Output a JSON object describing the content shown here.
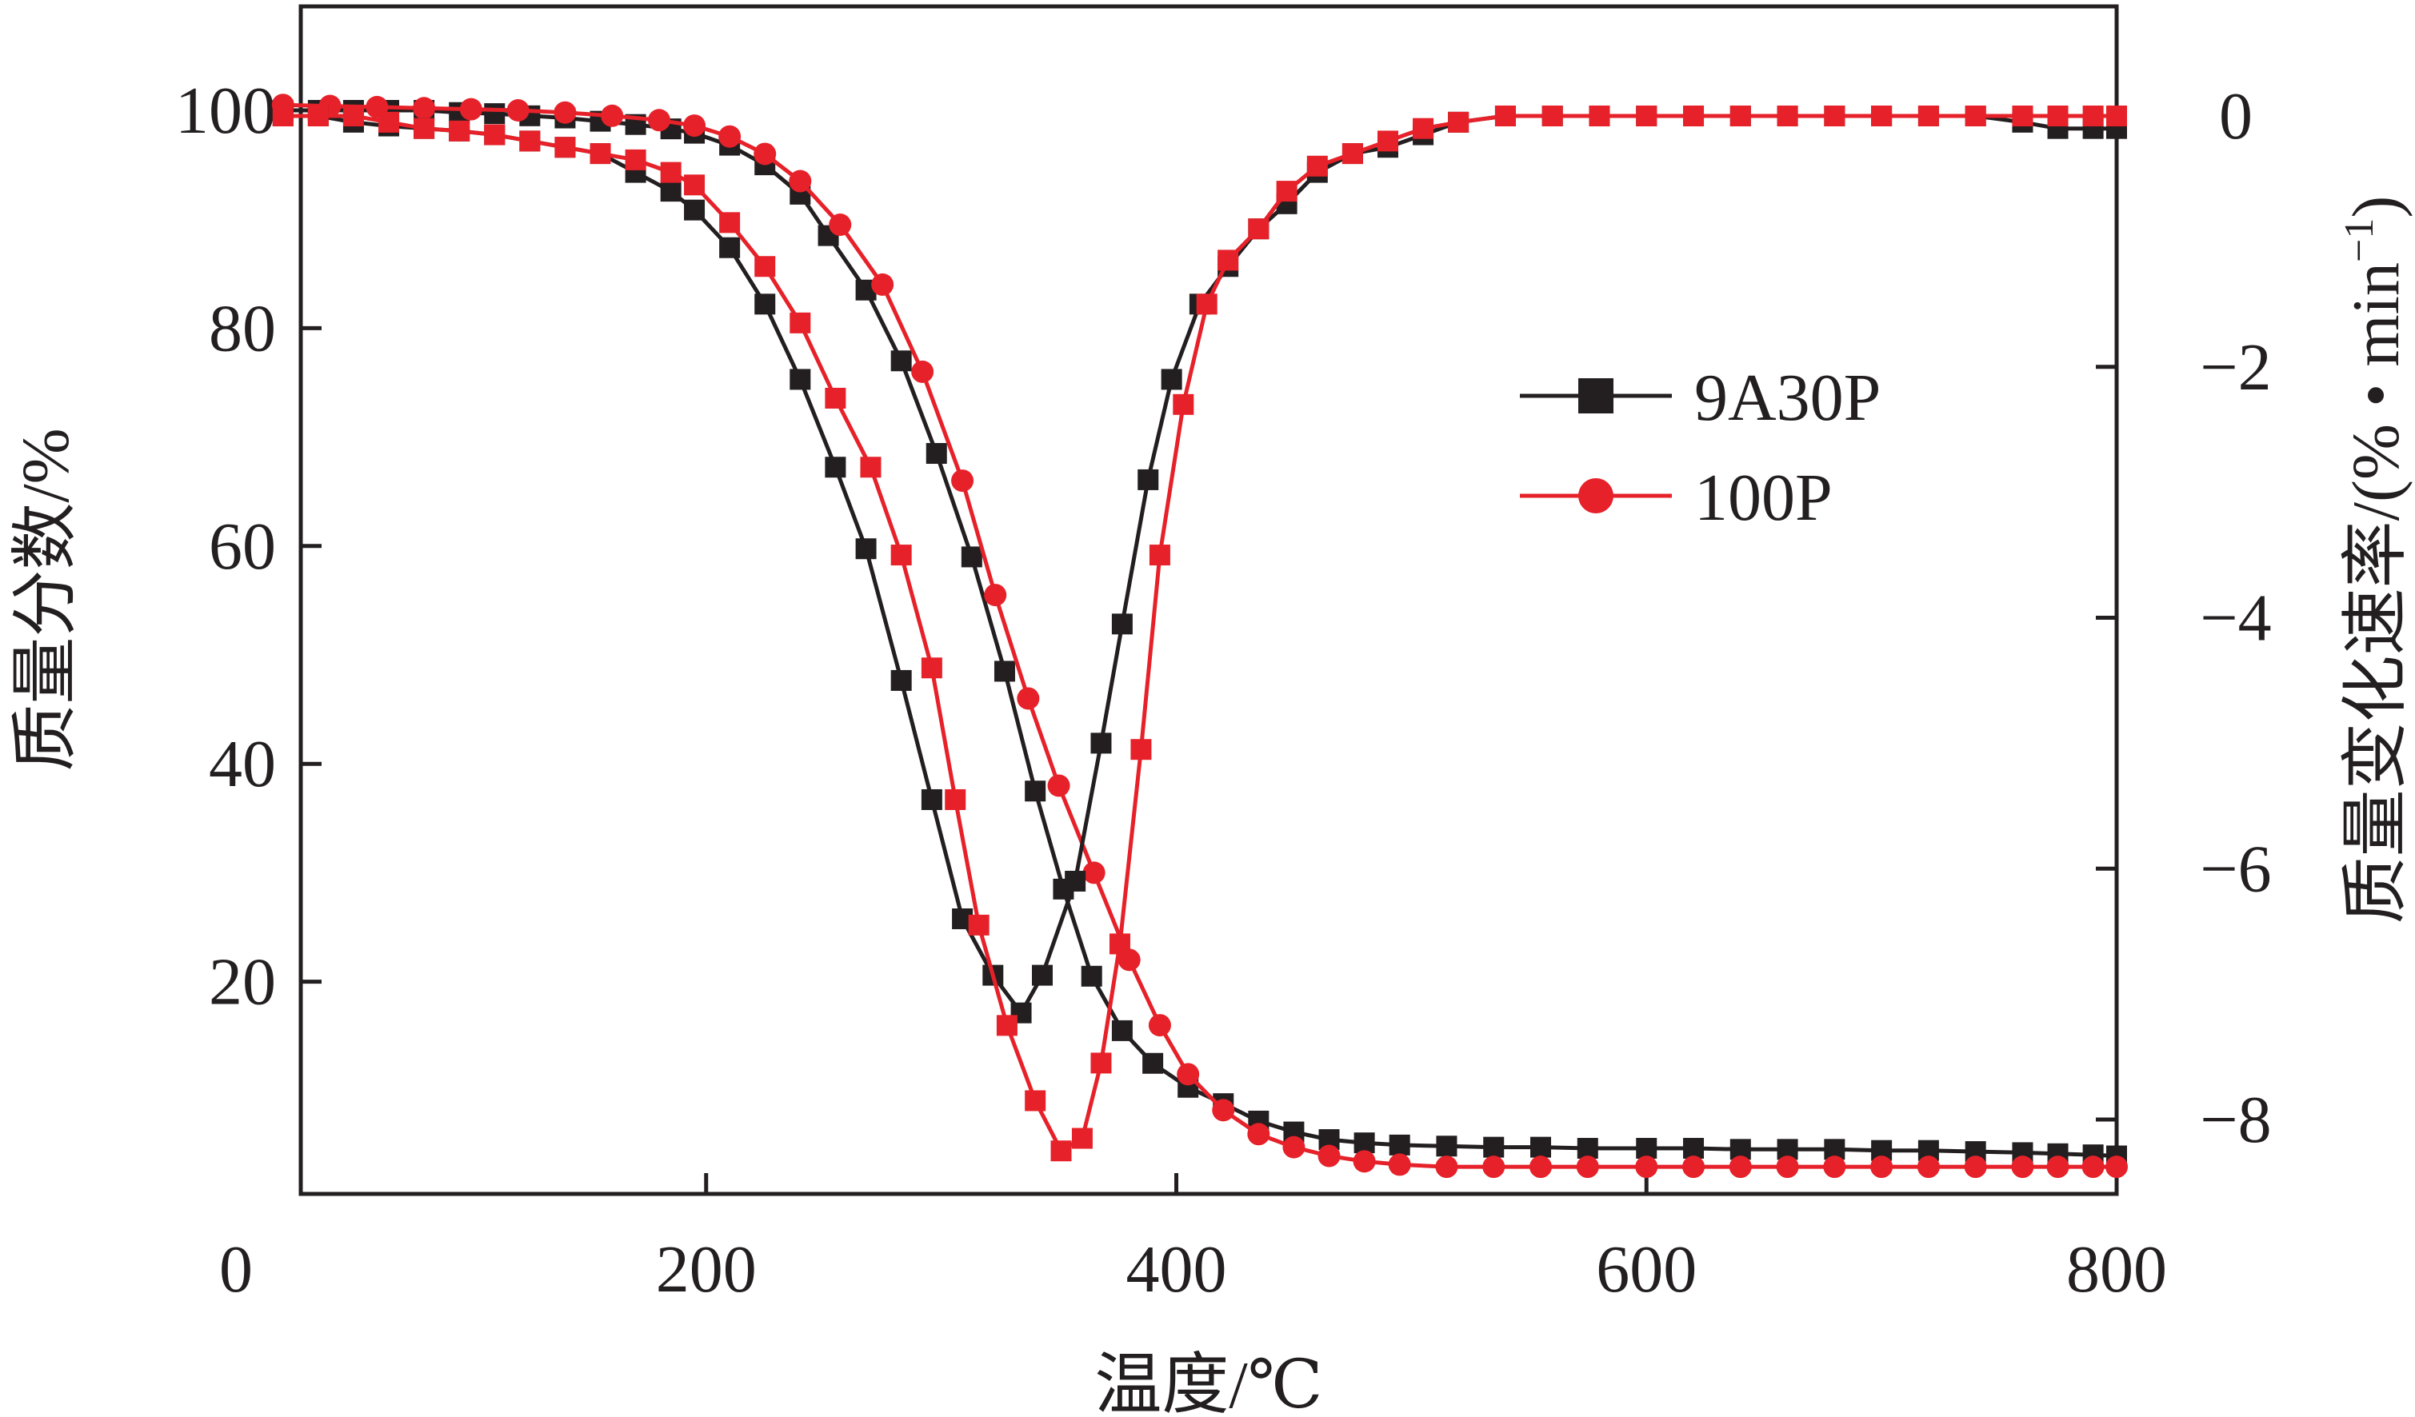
{
  "chart_data": {
    "type": "line",
    "title": "",
    "xlabel": "温度/℃",
    "ylabel_left": "质量分数/%",
    "ylabel_right": "质量变化速率/(% • min",
    "ylabel_right_sup": "−1",
    "ylabel_right_close": ")",
    "xlim": [
      0,
      800
    ],
    "ylim_left": [
      0,
      110
    ],
    "ylim_right": [
      -9,
      1
    ],
    "x_ticks": [
      0,
      200,
      400,
      600,
      800
    ],
    "x_tick_labels": [
      "0",
      "200",
      "400",
      "600",
      "800"
    ],
    "y_left_ticks": [
      20,
      40,
      60,
      80,
      100
    ],
    "y_left_tick_labels": [
      "20",
      "40",
      "60",
      "80",
      "100"
    ],
    "y_right_ticks": [
      0,
      -2,
      -4,
      -6,
      -8
    ],
    "y_right_tick_labels": [
      "0",
      "−2",
      "−4",
      "−6",
      "−8"
    ],
    "grid": false,
    "legend_position": "center-right",
    "legend": [
      {
        "name": "9A30P",
        "color": "#231f20",
        "marker": "square"
      },
      {
        "name": "100P",
        "color": "#e62129",
        "marker": "circle"
      }
    ],
    "series": [
      {
        "name": "9A30P",
        "kind": "mass",
        "axis": "left",
        "color": "#231f20",
        "marker": "square",
        "points": [
          [
            20,
            100
          ],
          [
            35,
            100
          ],
          [
            50,
            100
          ],
          [
            65,
            100
          ],
          [
            80,
            100
          ],
          [
            95,
            99.8
          ],
          [
            110,
            99.7
          ],
          [
            125,
            99.5
          ],
          [
            140,
            99.3
          ],
          [
            155,
            99
          ],
          [
            170,
            98.7
          ],
          [
            185,
            98.3
          ],
          [
            195,
            97.9
          ],
          [
            210,
            96.8
          ],
          [
            225,
            95
          ],
          [
            240,
            92.3
          ],
          [
            252,
            88.5
          ],
          [
            268,
            83.5
          ],
          [
            283,
            77
          ],
          [
            298,
            68.5
          ],
          [
            313,
            59
          ],
          [
            327,
            48.5
          ],
          [
            340,
            37.5
          ],
          [
            352,
            28.5
          ],
          [
            364,
            20.5
          ],
          [
            377,
            15.5
          ],
          [
            390,
            12.5
          ],
          [
            405,
            10.3
          ],
          [
            420,
            8.8
          ],
          [
            435,
            7.2
          ],
          [
            450,
            6.2
          ],
          [
            465,
            5.5
          ],
          [
            480,
            5.2
          ],
          [
            495,
            5
          ],
          [
            515,
            4.9
          ],
          [
            535,
            4.8
          ],
          [
            555,
            4.8
          ],
          [
            575,
            4.7
          ],
          [
            600,
            4.7
          ],
          [
            620,
            4.7
          ],
          [
            640,
            4.6
          ],
          [
            660,
            4.6
          ],
          [
            680,
            4.6
          ],
          [
            700,
            4.5
          ],
          [
            720,
            4.5
          ],
          [
            740,
            4.4
          ],
          [
            760,
            4.3
          ],
          [
            775,
            4.2
          ],
          [
            790,
            4.1
          ],
          [
            800,
            4
          ]
        ]
      },
      {
        "name": "100P",
        "kind": "mass",
        "axis": "left",
        "color": "#e62129",
        "marker": "circle",
        "points": [
          [
            20,
            100.5
          ],
          [
            40,
            100.4
          ],
          [
            60,
            100.3
          ],
          [
            80,
            100.2
          ],
          [
            100,
            100.1
          ],
          [
            120,
            100
          ],
          [
            140,
            99.8
          ],
          [
            160,
            99.5
          ],
          [
            180,
            99.1
          ],
          [
            195,
            98.6
          ],
          [
            210,
            97.6
          ],
          [
            225,
            96
          ],
          [
            240,
            93.5
          ],
          [
            257,
            89.5
          ],
          [
            275,
            84
          ],
          [
            292,
            76
          ],
          [
            309,
            66
          ],
          [
            323,
            55.5
          ],
          [
            337,
            46
          ],
          [
            350,
            38
          ],
          [
            365,
            30
          ],
          [
            380,
            22
          ],
          [
            393,
            16
          ],
          [
            405,
            11.5
          ],
          [
            420,
            8.2
          ],
          [
            435,
            6
          ],
          [
            450,
            4.8
          ],
          [
            465,
            4
          ],
          [
            480,
            3.5
          ],
          [
            495,
            3.2
          ],
          [
            515,
            3
          ],
          [
            535,
            3
          ],
          [
            555,
            3
          ],
          [
            575,
            3
          ],
          [
            600,
            3
          ],
          [
            620,
            3
          ],
          [
            640,
            3
          ],
          [
            660,
            3
          ],
          [
            680,
            3
          ],
          [
            700,
            3
          ],
          [
            720,
            3
          ],
          [
            740,
            3
          ],
          [
            760,
            3
          ],
          [
            775,
            3
          ],
          [
            790,
            3
          ],
          [
            800,
            3
          ]
        ]
      },
      {
        "name": "9A30P",
        "kind": "rate",
        "axis": "right",
        "color": "#231f20",
        "marker": "square",
        "points": [
          [
            20,
            0
          ],
          [
            35,
            0
          ],
          [
            50,
            -0.05
          ],
          [
            65,
            -0.08
          ],
          [
            80,
            -0.1
          ],
          [
            95,
            -0.12
          ],
          [
            110,
            -0.15
          ],
          [
            125,
            -0.2
          ],
          [
            140,
            -0.25
          ],
          [
            155,
            -0.3
          ],
          [
            170,
            -0.45
          ],
          [
            185,
            -0.6
          ],
          [
            195,
            -0.75
          ],
          [
            210,
            -1.05
          ],
          [
            225,
            -1.5
          ],
          [
            240,
            -2.1
          ],
          [
            255,
            -2.8
          ],
          [
            268,
            -3.45
          ],
          [
            283,
            -4.5
          ],
          [
            296,
            -5.45
          ],
          [
            309,
            -6.4
          ],
          [
            322,
            -6.85
          ],
          [
            334,
            -7.15
          ],
          [
            343,
            -6.85
          ],
          [
            357,
            -6.1
          ],
          [
            368,
            -5
          ],
          [
            377,
            -4.05
          ],
          [
            388,
            -2.9
          ],
          [
            398,
            -2.1
          ],
          [
            410,
            -1.5
          ],
          [
            422,
            -1.2
          ],
          [
            435,
            -0.9
          ],
          [
            447,
            -0.7
          ],
          [
            460,
            -0.45
          ],
          [
            475,
            -0.3
          ],
          [
            490,
            -0.25
          ],
          [
            505,
            -0.15
          ],
          [
            520,
            -0.05
          ],
          [
            540,
            0
          ],
          [
            560,
            0
          ],
          [
            580,
            0
          ],
          [
            600,
            0
          ],
          [
            620,
            0
          ],
          [
            640,
            0
          ],
          [
            660,
            0
          ],
          [
            680,
            0
          ],
          [
            700,
            0
          ],
          [
            720,
            0
          ],
          [
            740,
            0
          ],
          [
            760,
            -0.05
          ],
          [
            775,
            -0.1
          ],
          [
            790,
            -0.1
          ],
          [
            800,
            -0.1
          ]
        ]
      },
      {
        "name": "100P",
        "kind": "rate",
        "axis": "right",
        "color": "#e62129",
        "marker": "square",
        "points": [
          [
            20,
            0
          ],
          [
            35,
            0
          ],
          [
            50,
            0
          ],
          [
            65,
            -0.05
          ],
          [
            80,
            -0.1
          ],
          [
            95,
            -0.12
          ],
          [
            110,
            -0.15
          ],
          [
            125,
            -0.2
          ],
          [
            140,
            -0.25
          ],
          [
            155,
            -0.3
          ],
          [
            170,
            -0.35
          ],
          [
            185,
            -0.45
          ],
          [
            195,
            -0.55
          ],
          [
            210,
            -0.85
          ],
          [
            225,
            -1.2
          ],
          [
            240,
            -1.65
          ],
          [
            255,
            -2.25
          ],
          [
            270,
            -2.8
          ],
          [
            283,
            -3.5
          ],
          [
            296,
            -4.4
          ],
          [
            306,
            -5.45
          ],
          [
            316,
            -6.45
          ],
          [
            328,
            -7.25
          ],
          [
            340,
            -7.85
          ],
          [
            351,
            -8.25
          ],
          [
            360,
            -8.15
          ],
          [
            368,
            -7.55
          ],
          [
            376,
            -6.6
          ],
          [
            385,
            -5.05
          ],
          [
            393,
            -3.5
          ],
          [
            403,
            -2.3
          ],
          [
            413,
            -1.5
          ],
          [
            422,
            -1.15
          ],
          [
            435,
            -0.9
          ],
          [
            447,
            -0.6
          ],
          [
            460,
            -0.4
          ],
          [
            475,
            -0.3
          ],
          [
            490,
            -0.2
          ],
          [
            505,
            -0.1
          ],
          [
            520,
            -0.05
          ],
          [
            540,
            0
          ],
          [
            560,
            0
          ],
          [
            580,
            0
          ],
          [
            600,
            0
          ],
          [
            620,
            0
          ],
          [
            640,
            0
          ],
          [
            660,
            0
          ],
          [
            680,
            0
          ],
          [
            700,
            0
          ],
          [
            720,
            0
          ],
          [
            740,
            0
          ],
          [
            760,
            0
          ],
          [
            775,
            0
          ],
          [
            790,
            0
          ],
          [
            800,
            0
          ]
        ]
      }
    ]
  }
}
